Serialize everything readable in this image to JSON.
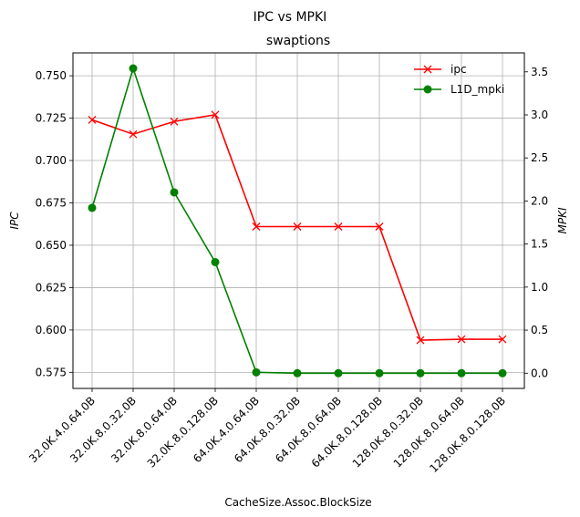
{
  "chart_data": {
    "type": "line",
    "suptitle": "IPC vs MPKI",
    "title": "swaptions",
    "xlabel": "CacheSize.Assoc.BlockSize",
    "ylabel_left": "IPC",
    "ylabel_right": "MPKI",
    "categories": [
      "32.0K.4.0.64.0B",
      "32.0K.8.0.32.0B",
      "32.0K.8.0.64.0B",
      "32.0K.8.0.128.0B",
      "64.0K.4.0.64.0B",
      "64.0K.8.0.32.0B",
      "64.0K.8.0.64.0B",
      "64.0K.8.0.128.0B",
      "128.0K.8.0.32.0B",
      "128.0K.8.0.64.0B",
      "128.0K.8.0.128.0B"
    ],
    "ylim_left": [
      0.5655,
      0.7635
    ],
    "ylim_right": [
      -0.177,
      3.72
    ],
    "yticks_left": [
      "0.575",
      "0.600",
      "0.625",
      "0.650",
      "0.675",
      "0.700",
      "0.725",
      "0.750"
    ],
    "yticks_right": [
      "0.0",
      "0.5",
      "1.0",
      "1.5",
      "2.0",
      "2.5",
      "3.0",
      "3.5"
    ],
    "grid": true,
    "legend_position": "top-right",
    "series": [
      {
        "name": "ipc",
        "axis": "left",
        "color": "#ff0000",
        "marker": "x",
        "values": [
          0.724,
          0.7155,
          0.723,
          0.727,
          0.661,
          0.661,
          0.661,
          0.661,
          0.594,
          0.5945,
          0.5945
        ]
      },
      {
        "name": "L1D_mpki",
        "axis": "right",
        "color": "#008000",
        "marker": "o",
        "values": [
          1.92,
          3.54,
          2.1,
          1.29,
          0.01,
          0.0,
          0.0,
          0.0,
          0.0,
          0.0,
          0.0
        ]
      }
    ]
  }
}
